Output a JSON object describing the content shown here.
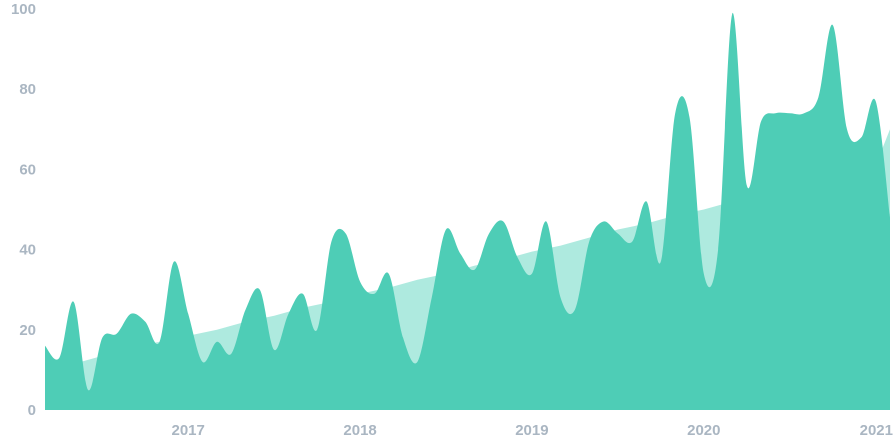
{
  "chart_data": {
    "type": "area",
    "title": "",
    "xlabel": "",
    "ylabel": "",
    "ylim": [
      0,
      100
    ],
    "xlim": [
      "2016-03",
      "2021-02"
    ],
    "y_ticks": [
      "0",
      "20",
      "40",
      "60",
      "80",
      "100"
    ],
    "x_ticks": [
      "2017",
      "2018",
      "2019",
      "2020",
      "2021"
    ],
    "grid": false,
    "legend": "none",
    "series": [
      {
        "role": "trend-band",
        "color": "#aeeadf",
        "x": [
          "2016-03",
          "2016-05",
          "2016-07",
          "2016-09",
          "2016-11",
          "2017-01",
          "2017-03",
          "2017-05",
          "2017-07",
          "2017-09",
          "2017-11",
          "2018-01",
          "2018-03",
          "2018-05",
          "2018-07",
          "2018-09",
          "2018-11",
          "2019-01",
          "2019-03",
          "2019-05",
          "2019-07",
          "2019-09",
          "2019-11",
          "2020-01",
          "2020-03",
          "2020-05",
          "2020-07",
          "2020-09",
          "2020-11",
          "2021-01",
          "2021-02"
        ],
        "values": [
          10,
          11.5,
          13.5,
          15.5,
          17,
          18.5,
          20,
          22,
          23.5,
          25.5,
          27,
          29,
          30.5,
          32.5,
          34,
          36,
          37.5,
          39.5,
          41,
          43,
          45,
          46.5,
          48.5,
          50,
          52,
          53.5,
          55.5,
          57,
          59,
          61,
          70
        ]
      },
      {
        "role": "values",
        "color": "#4ecdb6",
        "x": [
          "2016-03",
          "2016-04",
          "2016-05",
          "2016-06",
          "2016-07",
          "2016-08",
          "2016-09",
          "2016-10",
          "2016-11",
          "2016-12",
          "2017-01",
          "2017-02",
          "2017-03",
          "2017-04",
          "2017-05",
          "2017-06",
          "2017-07",
          "2017-08",
          "2017-09",
          "2017-10",
          "2017-11",
          "2017-12",
          "2018-01",
          "2018-02",
          "2018-03",
          "2018-04",
          "2018-05",
          "2018-06",
          "2018-07",
          "2018-08",
          "2018-09",
          "2018-10",
          "2018-11",
          "2018-12",
          "2019-01",
          "2019-02",
          "2019-03",
          "2019-04",
          "2019-05",
          "2019-06",
          "2019-07",
          "2019-08",
          "2019-09",
          "2019-10",
          "2019-11",
          "2019-12",
          "2020-01",
          "2020-02",
          "2020-03",
          "2020-04",
          "2020-05",
          "2020-06",
          "2020-07",
          "2020-08",
          "2020-09",
          "2020-10",
          "2020-11",
          "2020-12",
          "2021-01",
          "2021-02"
        ],
        "values": [
          16,
          13,
          27,
          5,
          18,
          19,
          24,
          22,
          17,
          37,
          24,
          12,
          17,
          14,
          25,
          30,
          15,
          24,
          29,
          20,
          42,
          44,
          32,
          29,
          34,
          18,
          12,
          28,
          45,
          39,
          35,
          44,
          47,
          38,
          34,
          47,
          28,
          25,
          42,
          47,
          44,
          42,
          52,
          37,
          74,
          73,
          34,
          40,
          99,
          56,
          72,
          74,
          74,
          74,
          78,
          96,
          70,
          68,
          77,
          48
        ]
      }
    ]
  }
}
